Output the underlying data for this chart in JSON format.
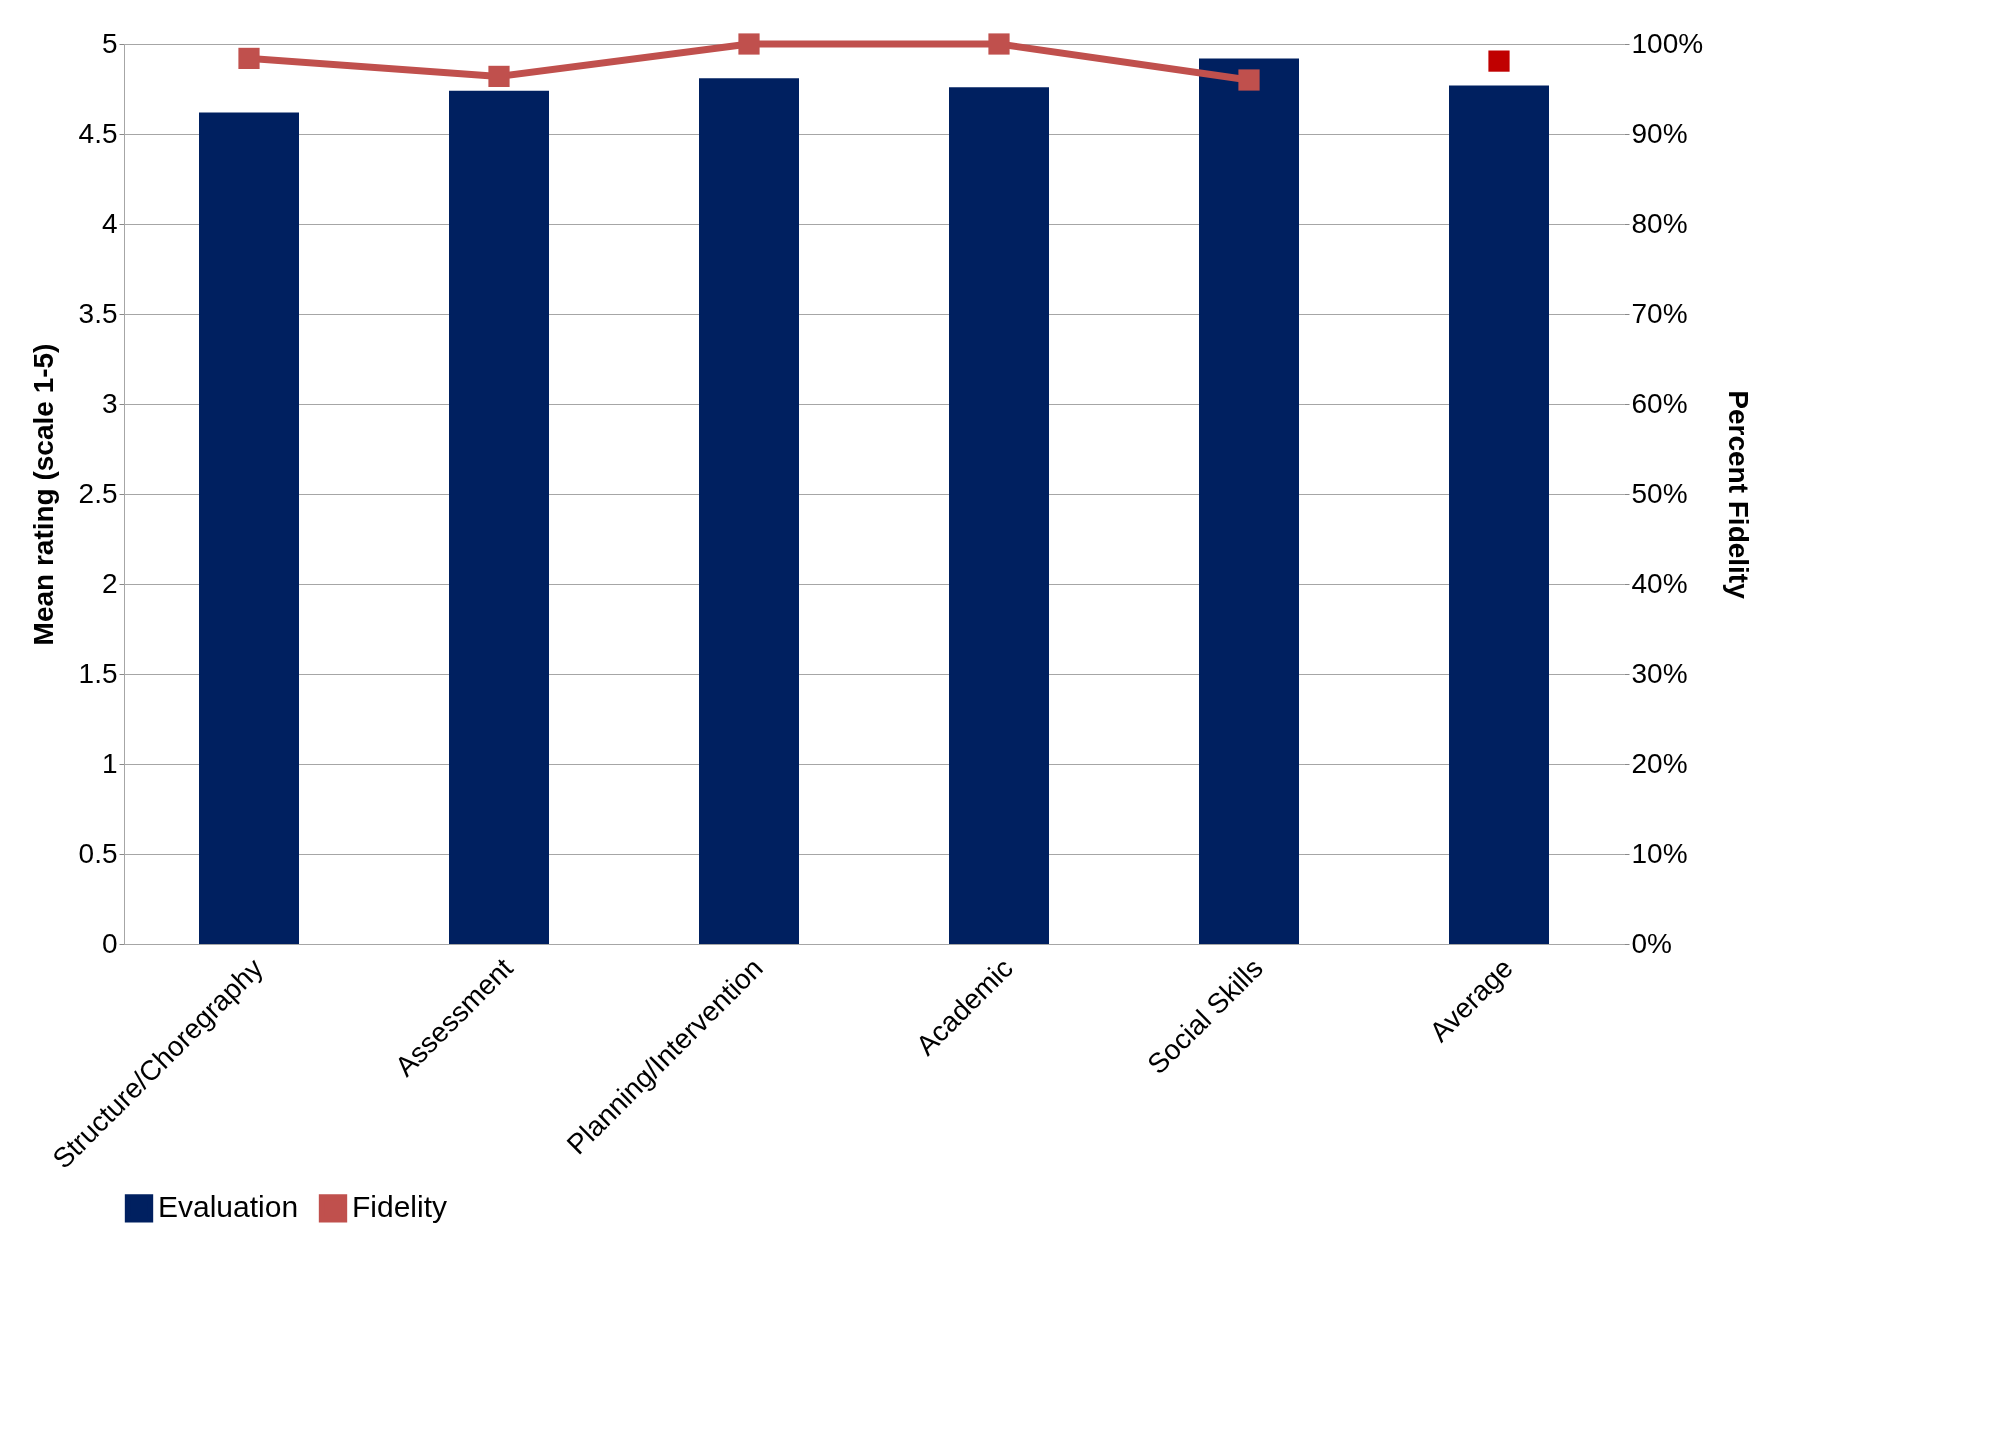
{
  "chart_data": {
    "type": "bar",
    "ylabel": "Mean rating (scale 1-5)",
    "y2label": "Percent Fidelity",
    "categories": [
      "Structure/Choregraphy",
      "Assessment",
      "Planning/Intervention",
      "Academic",
      "Social Skills",
      "Average"
    ],
    "series": [
      {
        "name": "Evaluation",
        "color": "#002060",
        "values": [
          4.62,
          4.74,
          4.81,
          4.76,
          4.92,
          4.77
        ]
      },
      {
        "name": "Fidelity",
        "type": "line",
        "axis": "y2",
        "color": "#c0504d",
        "marker": "square",
        "values": [
          98.4,
          96.4,
          100,
          100,
          96.0,
          null
        ]
      },
      {
        "type": "scatter",
        "axis": "y2",
        "color": "#c00000",
        "marker": "square",
        "values": [
          null,
          null,
          null,
          null,
          null,
          98.1
        ]
      }
    ],
    "ylim": [
      0,
      5
    ],
    "yticks": [
      0,
      0.5,
      1,
      1.5,
      2,
      2.5,
      3,
      3.5,
      4,
      4.5,
      5
    ],
    "y2lim": [
      0,
      100
    ],
    "y2ticks": [
      {
        "value": 0,
        "label": "0%"
      },
      {
        "value": 10,
        "label": "10%"
      },
      {
        "value": 20,
        "label": "20%"
      },
      {
        "value": 30,
        "label": "30%"
      },
      {
        "value": 40,
        "label": "40%"
      },
      {
        "value": 50,
        "label": "50%"
      },
      {
        "value": 60,
        "label": "60%"
      },
      {
        "value": 70,
        "label": "70%"
      },
      {
        "value": 80,
        "label": "80%"
      },
      {
        "value": 90,
        "label": "90%"
      },
      {
        "value": 100,
        "label": "100%"
      }
    ],
    "grid": "y",
    "legend": "bottom"
  }
}
